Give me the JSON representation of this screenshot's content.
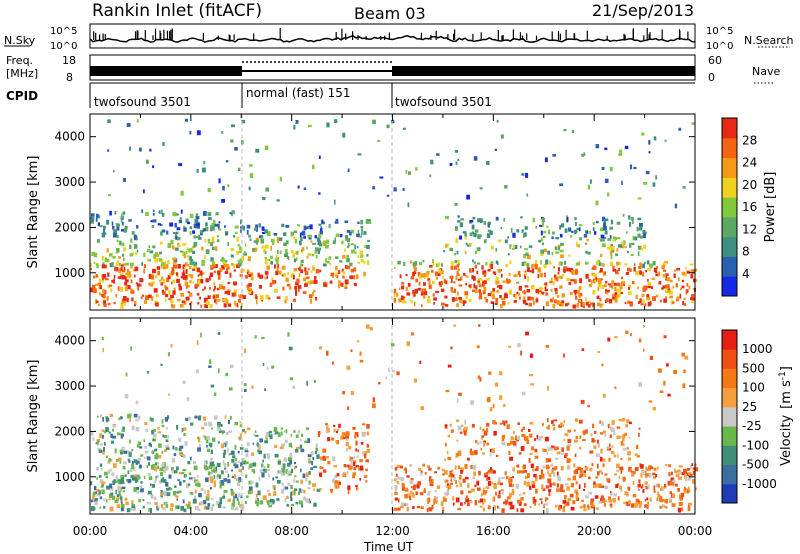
{
  "header": {
    "title": "Rankin Inlet (fitACF)",
    "beam": "Beam 03",
    "date": "21/Sep/2013"
  },
  "status_panels": {
    "noise": {
      "left_label": "N.Sky",
      "right_label": "N.Search",
      "ytick_top": "10^5",
      "ytick_bottom": "10^0"
    },
    "frequency": {
      "left_label_line1": "Freq.",
      "left_label_line2": "[MHz]",
      "right_label": "Nave",
      "left_ticks": [
        "18",
        "8"
      ],
      "right_ticks": [
        "60",
        "0"
      ]
    },
    "cpid": {
      "label": "CPID",
      "segments": [
        {
          "start_h": 0,
          "end_h": 6,
          "text": "twofsound 3501"
        },
        {
          "start_h": 6,
          "end_h": 12,
          "text": "normal (fast) 151"
        },
        {
          "start_h": 12,
          "end_h": 24,
          "text": "twofsound 3501"
        }
      ]
    }
  },
  "chart_data": [
    {
      "type": "heatmap",
      "name": "power-panel",
      "ylabel": "Slant Range [km]",
      "xlabel": "",
      "yticks": [
        1000,
        2000,
        3000,
        4000
      ],
      "ylim": [
        180,
        4500
      ],
      "xlim_h": [
        0,
        24
      ],
      "mode_change_hours": [
        6,
        12
      ],
      "colorbar": {
        "label": "Power [dB]",
        "ticks": [
          "4",
          "8",
          "12",
          "16",
          "20",
          "24",
          "28"
        ],
        "colors": [
          "#1428e6",
          "#2b5fb0",
          "#3f8f80",
          "#5aa864",
          "#82c83c",
          "#f0d21e",
          "#f59a14",
          "#f56414",
          "#e62814"
        ]
      }
    },
    {
      "type": "heatmap",
      "name": "velocity-panel",
      "ylabel": "Slant Range [km]",
      "xlabel": "Time UT",
      "yticks": [
        1000,
        2000,
        3000,
        4000
      ],
      "ylim": [
        180,
        4500
      ],
      "xlim_h": [
        0,
        24
      ],
      "xticks": [
        "00:00",
        "04:00",
        "08:00",
        "12:00",
        "16:00",
        "20:00",
        "00:00"
      ],
      "mode_change_hours": [
        6,
        12
      ],
      "colorbar": {
        "label_main": "Velocity",
        "label_units": "[m s",
        "label_exp": "-1",
        "label_close": "]",
        "ticks": [
          "1000",
          "500",
          "100",
          "25",
          "-25",
          "-100",
          "-500",
          "-1000"
        ],
        "colors": [
          "#1e3cb4",
          "#3c6ea0",
          "#3f8f78",
          "#6bb84a",
          "#c8c8c8",
          "#f5a03c",
          "#f57814",
          "#f05014",
          "#e61e14"
        ]
      }
    }
  ]
}
